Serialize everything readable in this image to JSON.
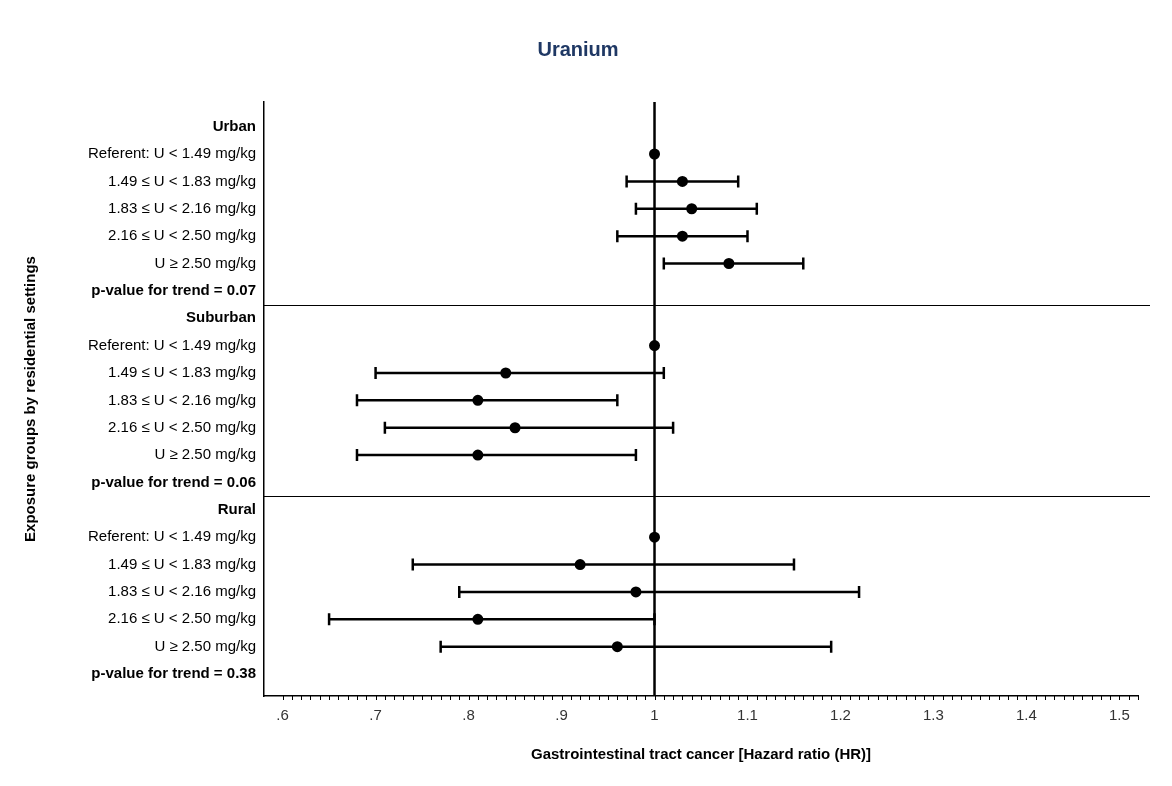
{
  "chart_data": {
    "type": "scatter",
    "orientation": "horizontal",
    "title": "Uranium",
    "xlabel": "Gastrointestinal tract cancer [Hazard ratio (HR)]",
    "ylabel": "Exposure groups by residential settings",
    "categories": [
      "Urban",
      "Referent: U < 1.49 mg/kg",
      "1.49 ≤ U < 1.83 mg/kg",
      "1.83 ≤ U < 2.16 mg/kg",
      "2.16 ≤ U < 2.50 mg/kg",
      "U ≥ 2.50 mg/kg",
      "p-value for trend = 0.07",
      "Suburban",
      "Referent: U < 1.49 mg/kg",
      "1.49 ≤ U < 1.83 mg/kg",
      "1.83 ≤ U < 2.16 mg/kg",
      "2.16 ≤ U < 2.50 mg/kg",
      "U ≥ 2.50 mg/kg",
      "p-value for trend = 0.06",
      "Rural",
      "Referent: U < 1.49 mg/kg",
      "1.49 ≤ U < 1.83 mg/kg",
      "1.83 ≤ U < 2.16 mg/kg",
      "2.16 ≤ U < 2.50 mg/kg",
      "U ≥ 2.50 mg/kg",
      "p-value for trend = 0.38"
    ],
    "values": [
      null,
      1,
      1.03,
      1.04,
      1.03,
      1.08,
      null,
      null,
      1,
      0.84,
      0.81,
      0.85,
      0.81,
      null,
      null,
      1,
      0.92,
      0.98,
      0.81,
      0.96,
      null
    ],
    "errors": [
      null,
      null,
      [
        0.97,
        1.09
      ],
      [
        0.98,
        1.11
      ],
      [
        0.96,
        1.1
      ],
      [
        1.01,
        1.16
      ],
      null,
      null,
      null,
      [
        0.7,
        1.01
      ],
      [
        0.68,
        0.96
      ],
      [
        0.71,
        1.02
      ],
      [
        0.68,
        0.98
      ],
      null,
      null,
      null,
      [
        0.74,
        1.15
      ],
      [
        0.79,
        1.22
      ],
      [
        0.65,
        1.0
      ],
      [
        0.77,
        1.19
      ],
      null
    ],
    "color": "#000000",
    "marker": "circle",
    "grid": false,
    "legend": false,
    "xlim": [
      0.58,
      1.52
    ],
    "xticks": [
      {
        "value": 0.6,
        "label": ".6"
      },
      {
        "value": 0.7,
        "label": ".7"
      },
      {
        "value": 0.8,
        "label": ".8"
      },
      {
        "value": 0.9,
        "label": ".9"
      },
      1,
      1.1,
      1.2,
      1.3,
      1.4,
      1.5
    ],
    "ref_lines": [
      {
        "axis": "x",
        "value": 1,
        "color": "#000000"
      }
    ]
  }
}
